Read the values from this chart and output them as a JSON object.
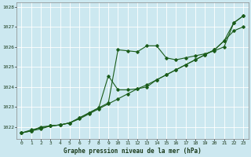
{
  "bg_color": "#cce8f0",
  "grid_color": "#ffffff",
  "line_color": "#1a5c1a",
  "xlabel": "Graphe pression niveau de la mer (hPa)",
  "xlim": [
    -0.5,
    23.5
  ],
  "ylim": [
    1021.4,
    1028.2
  ],
  "yticks": [
    1022,
    1023,
    1024,
    1025,
    1026,
    1027,
    1028
  ],
  "xticks": [
    0,
    1,
    2,
    3,
    4,
    5,
    6,
    7,
    8,
    9,
    10,
    11,
    12,
    13,
    14,
    15,
    16,
    17,
    18,
    19,
    20,
    21,
    22,
    23
  ],
  "series": [
    [
      1021.7,
      1021.8,
      1021.9,
      1022.05,
      1022.1,
      1022.2,
      1022.4,
      1022.65,
      1022.9,
      1023.15,
      1023.4,
      1023.65,
      1023.9,
      1024.1,
      1024.35,
      1024.6,
      1024.85,
      1025.1,
      1025.35,
      1025.6,
      1025.85,
      1026.3,
      1026.8,
      1027.0
    ],
    [
      1021.7,
      1021.85,
      1021.95,
      1022.05,
      1022.1,
      1022.2,
      1022.45,
      1022.7,
      1022.95,
      1023.2,
      1025.85,
      1025.8,
      1025.75,
      1026.05,
      1026.05,
      1025.45,
      1025.35,
      1025.45,
      1025.55,
      1025.65,
      1025.8,
      1026.0,
      1027.2,
      1027.55
    ],
    [
      1021.7,
      1021.8,
      1022.0,
      1022.05,
      1022.1,
      1022.2,
      1022.45,
      1022.7,
      1022.95,
      1024.55,
      1023.85,
      1023.85,
      1023.9,
      1024.0,
      1024.35,
      1024.6,
      1024.85,
      1025.1,
      1025.35,
      1025.6,
      1025.85,
      1026.3,
      1027.2,
      1027.55
    ]
  ]
}
